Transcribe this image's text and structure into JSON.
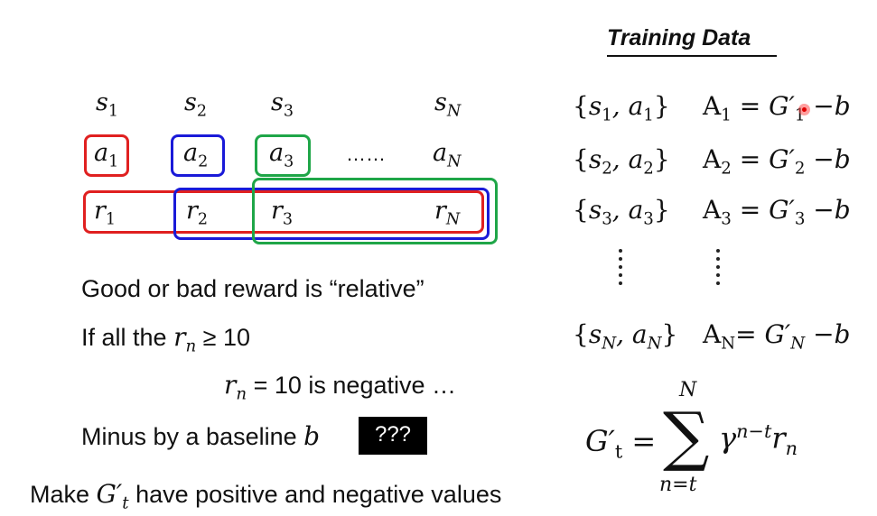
{
  "training_title": "Training Data",
  "states": [
    "s1",
    "s2",
    "s3",
    "sN"
  ],
  "actions": [
    "a1",
    "a2",
    "a3",
    "aN"
  ],
  "rewards": [
    "r1",
    "r2",
    "r3",
    "rN"
  ],
  "action_ellipsis": "……",
  "box_colors": {
    "red": "#e02020",
    "blue": "#1a1ad8",
    "green": "#1fa648"
  },
  "left_text": {
    "line1": "Good or bad reward is “relative”",
    "line2_prefix": "If all the ",
    "line2_suffix": " ≥ 10",
    "line3_mid": " = 10 is negative …",
    "line4_prefix": "Minus by a baseline ",
    "badge": "???",
    "line5_prefix": "Make ",
    "line5_suffix": " have positive and negative values"
  },
  "pairs": [
    {
      "set": "{s1, a1}",
      "lhs": "A1 = ",
      "rhs": "G′1 −b"
    },
    {
      "set": "{s2, a2}",
      "lhs": "A2 = ",
      "rhs": "G′2 −b"
    },
    {
      "set": "{s3, a3}",
      "lhs": "A3 = ",
      "rhs": "G′3 −b"
    },
    {
      "set": "{sN, aN}",
      "lhs": "AN= ",
      "rhs": "G′N −b"
    }
  ],
  "formula": {
    "lhs": "G′t = ",
    "upper": "N",
    "lower": "n=t",
    "term": "γn−t rn"
  }
}
